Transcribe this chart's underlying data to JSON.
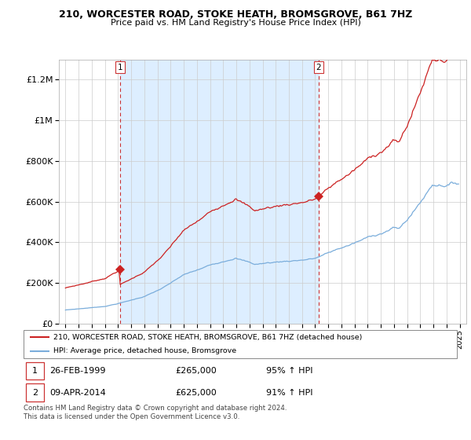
{
  "title_line1": "210, WORCESTER ROAD, STOKE HEATH, BROMSGROVE, B61 7HZ",
  "title_line2": "Price paid vs. HM Land Registry's House Price Index (HPI)",
  "ylim": [
    0,
    1300000
  ],
  "yticks": [
    0,
    200000,
    400000,
    600000,
    800000,
    1000000,
    1200000
  ],
  "ytick_labels": [
    "£0",
    "£200K",
    "£400K",
    "£600K",
    "£800K",
    "£1M",
    "£1.2M"
  ],
  "sale1_year": 1999.15,
  "sale1_price": 265000,
  "sale2_year": 2014.27,
  "sale2_price": 625000,
  "hpi_line_color": "#7aaddb",
  "property_line_color": "#cc2222",
  "dashed_line_color": "#cc3333",
  "shaded_color": "#ddeeff",
  "legend_label1": "210, WORCESTER ROAD, STOKE HEATH, BROMSGROVE, B61 7HZ (detached house)",
  "legend_label2": "HPI: Average price, detached house, Bromsgrove",
  "table_row1": [
    "1",
    "26-FEB-1999",
    "£265,000",
    "95% ↑ HPI"
  ],
  "table_row2": [
    "2",
    "09-APR-2014",
    "£625,000",
    "91% ↑ HPI"
  ],
  "footer": "Contains HM Land Registry data © Crown copyright and database right 2024.\nThis data is licensed under the Open Government Licence v3.0.",
  "background_color": "#ffffff",
  "grid_color": "#cccccc",
  "xlim_left": 1994.5,
  "xlim_right": 2025.5
}
